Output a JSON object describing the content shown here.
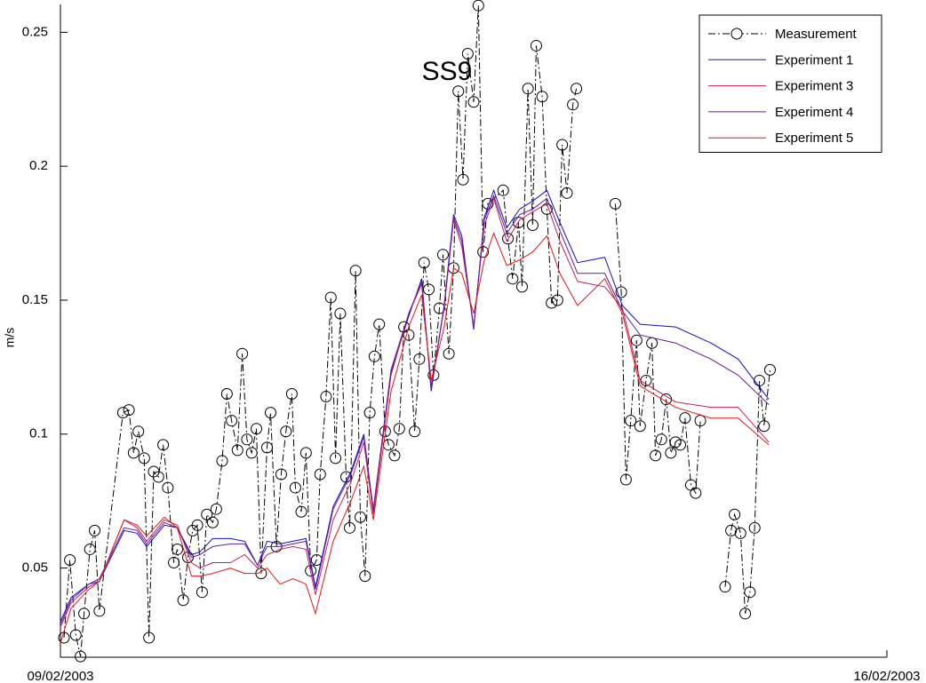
{
  "chart_data": {
    "type": "line",
    "annotation": "SS9",
    "ylabel": "m/s",
    "xlim": [
      0,
      7
    ],
    "xticks": [
      {
        "value": 0,
        "label": "09/02/2003"
      },
      {
        "value": 7,
        "label": "16/02/2003"
      }
    ],
    "ylim": [
      0.0167,
      0.2604
    ],
    "yticks": [
      0.05,
      0.1,
      0.15,
      0.2,
      0.25
    ],
    "grid": false,
    "legend": "upper right",
    "series": [
      {
        "name": "Measurement",
        "color": "#000000",
        "style": "dash-dot",
        "marker": "circle",
        "x": [
          0.03,
          0.08,
          0.13,
          0.17,
          0.2,
          0.25,
          0.29,
          0.33,
          0.53,
          0.58,
          0.62,
          0.66,
          0.71,
          0.75,
          0.79,
          0.83,
          0.87,
          0.91,
          0.96,
          0.99,
          1.04,
          1.08,
          1.12,
          1.16,
          1.2,
          1.24,
          1.29,
          1.32,
          1.37,
          1.41,
          1.45,
          1.5,
          1.54,
          1.58,
          1.62,
          1.66,
          1.7,
          1.75,
          1.78,
          1.83,
          1.87,
          1.91,
          1.96,
          1.99,
          2.04,
          2.08,
          2.12,
          2.17,
          2.2,
          2.25,
          2.29,
          2.33,
          2.37,
          2.42,
          2.45,
          2.5,
          2.54,
          2.58,
          2.62,
          2.66,
          2.7,
          2.75,
          2.78,
          2.83,
          2.87,
          2.91,
          2.95,
          3.0,
          3.04,
          3.08,
          3.12,
          3.16,
          3.21,
          3.24,
          3.29,
          3.33,
          3.37,
          3.41,
          3.45,
          3.5,
          3.54,
          3.58,
          3.62,
          3.75,
          3.79,
          3.83,
          3.88,
          3.91,
          3.96,
          4.0,
          4.03,
          4.08,
          4.12,
          4.16,
          4.21,
          4.25,
          4.29,
          4.34,
          4.37,
          null,
          4.7,
          4.75,
          4.79,
          4.83,
          4.88,
          4.91,
          4.96,
          5.01,
          5.04,
          5.09,
          5.13,
          5.17,
          5.21,
          5.25,
          5.29,
          5.34,
          5.38,
          5.42,
          null,
          5.63,
          5.68,
          5.71,
          5.76,
          5.8,
          5.84,
          5.88,
          5.92,
          5.96,
          6.01
        ],
        "values": [
          0.024,
          0.053,
          0.025,
          0.017,
          0.033,
          0.057,
          0.064,
          0.034,
          0.108,
          0.109,
          0.093,
          0.101,
          0.091,
          0.024,
          0.086,
          0.084,
          0.096,
          0.08,
          0.052,
          0.057,
          0.038,
          0.054,
          0.064,
          0.066,
          0.041,
          0.07,
          0.067,
          0.072,
          0.09,
          0.115,
          0.105,
          0.094,
          0.13,
          0.098,
          0.093,
          0.102,
          0.048,
          0.095,
          0.108,
          0.058,
          0.085,
          0.101,
          0.115,
          0.08,
          0.071,
          0.093,
          0.049,
          0.053,
          0.085,
          0.114,
          0.151,
          0.091,
          0.145,
          0.084,
          0.065,
          0.161,
          0.069,
          0.047,
          0.108,
          0.129,
          0.141,
          0.101,
          0.096,
          0.092,
          0.102,
          0.14,
          0.137,
          0.101,
          0.128,
          0.164,
          0.154,
          0.122,
          0.147,
          0.167,
          0.13,
          0.162,
          0.228,
          0.195,
          0.242,
          0.224,
          0.26,
          0.168,
          0.186,
          0.191,
          0.173,
          0.158,
          0.179,
          0.155,
          0.229,
          0.178,
          0.245,
          0.226,
          0.184,
          0.149,
          0.15,
          0.208,
          0.19,
          0.223,
          0.229,
          null,
          0.186,
          0.153,
          0.083,
          0.105,
          0.135,
          0.103,
          0.12,
          0.134,
          0.092,
          0.098,
          0.113,
          0.093,
          0.097,
          0.096,
          0.106,
          0.081,
          0.078,
          0.105,
          null,
          0.043,
          0.064,
          0.07,
          0.063,
          0.033,
          0.041,
          0.065,
          0.12,
          0.103,
          0.124
        ]
      },
      {
        "name": "Experiment 1",
        "color": "#1010c8",
        "values": [
          0.03,
          0.039,
          0.044,
          0.045,
          0.064,
          0.063,
          0.058,
          0.066,
          0.065,
          0.055,
          0.056,
          0.061,
          0.061,
          0.06,
          0.051,
          0.06,
          0.059,
          0.06,
          0.061,
          0.043,
          0.073,
          0.086,
          0.1,
          0.071,
          0.123,
          0.144,
          0.158,
          0.116,
          0.148,
          0.182,
          0.174,
          0.139,
          0.181,
          0.191,
          0.177,
          0.184,
          0.187,
          0.191,
          0.179,
          0.164,
          0.166,
          0.148,
          0.141,
          0.14,
          0.134,
          0.128,
          0.113
        ]
      },
      {
        "name": "Experiment 3",
        "color": "#c0205a",
        "values": [
          0.028,
          0.037,
          0.043,
          0.045,
          0.068,
          0.065,
          0.06,
          0.068,
          0.066,
          0.052,
          0.05,
          0.052,
          0.052,
          0.055,
          0.05,
          0.055,
          0.057,
          0.058,
          0.057,
          0.04,
          0.068,
          0.082,
          0.097,
          0.07,
          0.122,
          0.145,
          0.156,
          0.118,
          0.147,
          0.18,
          0.17,
          0.14,
          0.178,
          0.188,
          0.172,
          0.18,
          0.183,
          0.186,
          0.172,
          0.157,
          0.155,
          0.147,
          0.12,
          0.112,
          0.11,
          0.11,
          0.097
        ]
      },
      {
        "name": "Experiment 4",
        "color": "#6a1a9a",
        "values": [
          0.029,
          0.038,
          0.044,
          0.046,
          0.065,
          0.064,
          0.059,
          0.067,
          0.065,
          0.054,
          0.055,
          0.058,
          0.059,
          0.059,
          0.051,
          0.058,
          0.058,
          0.059,
          0.06,
          0.042,
          0.072,
          0.085,
          0.099,
          0.072,
          0.124,
          0.145,
          0.157,
          0.117,
          0.148,
          0.181,
          0.172,
          0.14,
          0.18,
          0.189,
          0.175,
          0.182,
          0.184,
          0.188,
          0.176,
          0.16,
          0.16,
          0.146,
          0.137,
          0.134,
          0.128,
          0.122,
          0.111
        ]
      },
      {
        "name": "Experiment 5",
        "color": "#e01818",
        "values": [
          0.022,
          0.035,
          0.042,
          0.045,
          0.068,
          0.066,
          0.062,
          0.069,
          0.065,
          0.047,
          0.047,
          0.048,
          0.05,
          0.048,
          0.048,
          0.05,
          0.044,
          0.046,
          0.044,
          0.033,
          0.06,
          0.075,
          0.088,
          0.068,
          0.116,
          0.14,
          0.152,
          0.12,
          0.14,
          0.162,
          0.16,
          0.145,
          0.165,
          0.175,
          0.163,
          0.165,
          0.168,
          0.174,
          0.16,
          0.148,
          0.158,
          0.145,
          0.118,
          0.11,
          0.106,
          0.106,
          0.096
        ]
      }
    ],
    "x": [
      0,
      0.09,
      0.24,
      0.33,
      0.54,
      0.65,
      0.73,
      0.88,
      0.99,
      1.11,
      1.18,
      1.29,
      1.44,
      1.56,
      1.67,
      1.75,
      1.86,
      1.97,
      2.08,
      2.16,
      2.31,
      2.46,
      2.57,
      2.65,
      2.8,
      2.95,
      3.06,
      3.14,
      3.25,
      3.33,
      3.4,
      3.5,
      3.59,
      3.67,
      3.78,
      3.89,
      4.0,
      4.12,
      4.23,
      4.38,
      4.61,
      4.76,
      4.91,
      5.21,
      5.51,
      5.74,
      6.0
    ]
  }
}
